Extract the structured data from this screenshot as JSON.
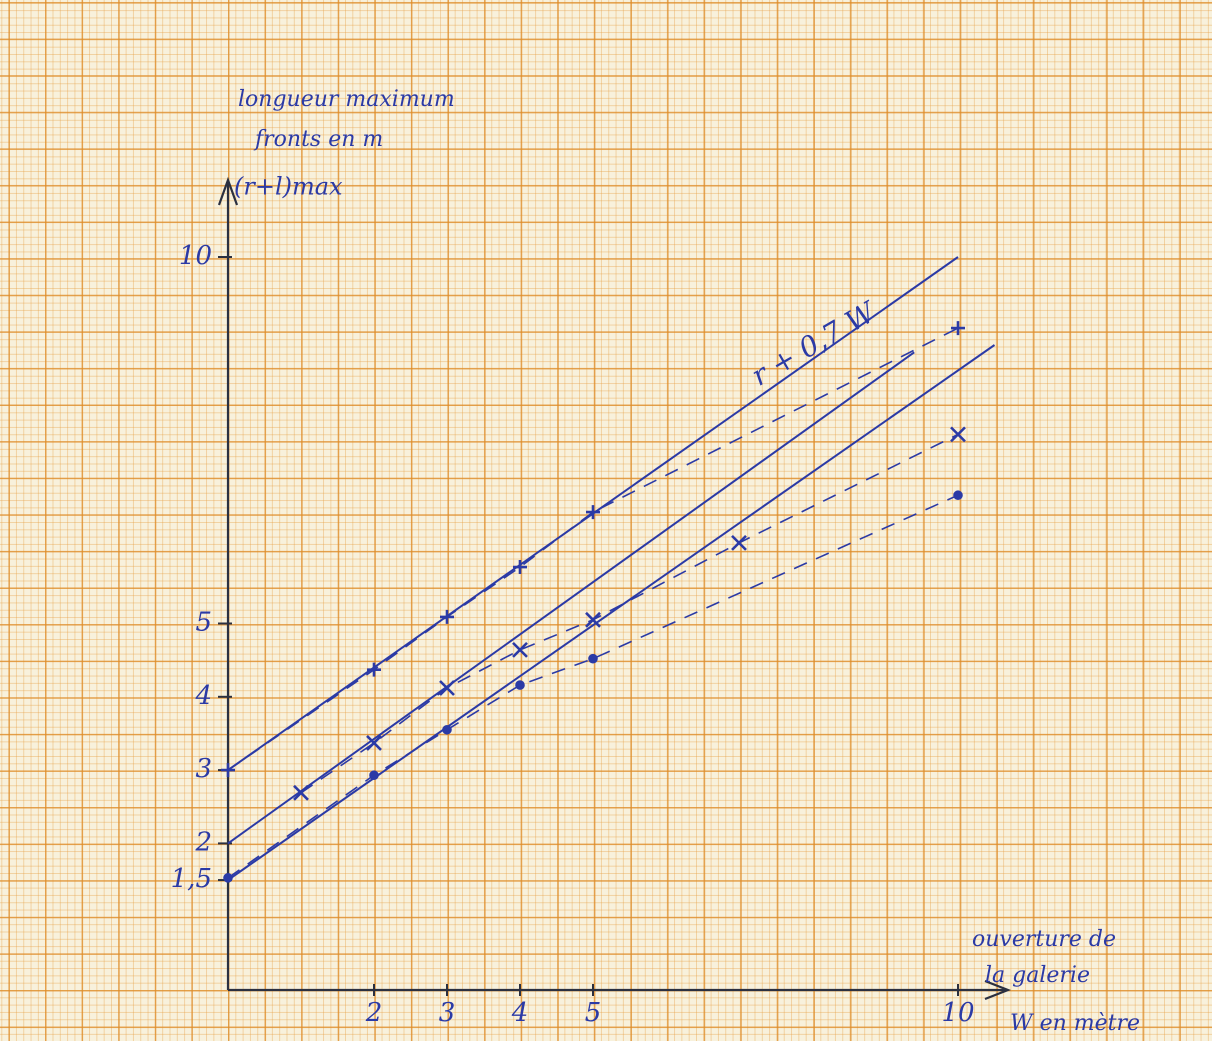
{
  "chart_data": {
    "type": "line",
    "y_label": [
      "longueur maximum",
      "fronts en m",
      "(r+l)max"
    ],
    "x_label": [
      "ouverture de",
      "la galerie",
      "W en mètre"
    ],
    "annotation": "r + 0,7 W",
    "xlim": [
      0,
      10.6
    ],
    "ylim": [
      0,
      11
    ],
    "xticks": [
      2,
      3,
      4,
      5,
      10
    ],
    "yticks": [
      {
        "value": 1.5,
        "label": "1,5"
      },
      2,
      3,
      4,
      5,
      10
    ],
    "color": "#2b3aa6",
    "series": [
      {
        "style": "solid",
        "x": [
          0,
          10
        ],
        "values": [
          3,
          10
        ]
      },
      {
        "style": "solid",
        "x": [
          0,
          9.4
        ],
        "values": [
          2,
          8.7
        ]
      },
      {
        "style": "solid",
        "x": [
          0,
          10.5
        ],
        "values": [
          1.5,
          8.8
        ]
      },
      {
        "style": "dashed",
        "marker": "plus",
        "x": [
          0,
          2,
          3,
          4,
          5,
          10
        ],
        "values": [
          3,
          4.37,
          5.09,
          5.77,
          6.52,
          9.03
        ]
      },
      {
        "style": "dashed",
        "marker": "cross",
        "x": [
          1,
          2,
          3,
          4,
          5,
          7,
          10
        ],
        "values": [
          2.69,
          3.37,
          4.12,
          4.64,
          5.05,
          6.1,
          7.58
        ]
      },
      {
        "style": "dashed",
        "marker": "dot",
        "x": [
          0,
          2,
          3,
          4,
          5,
          10
        ],
        "values": [
          1.53,
          2.93,
          3.55,
          4.16,
          4.52,
          6.75
        ]
      }
    ]
  }
}
